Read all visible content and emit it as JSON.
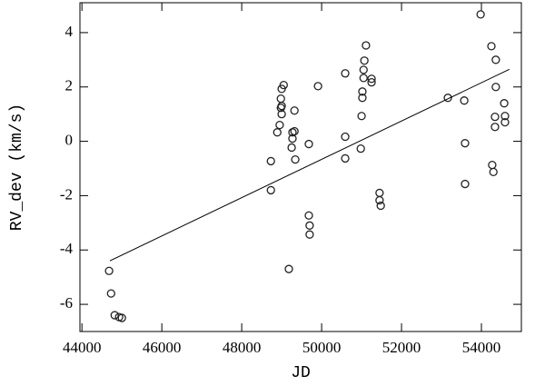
{
  "chart_data": {
    "type": "scatter",
    "x_label": "JD",
    "y_label": "RV_dev  (km/s)",
    "xlim": [
      43950,
      55000
    ],
    "ylim": [
      -7,
      5.1
    ],
    "xticks": [
      44000,
      46000,
      48000,
      50000,
      52000,
      54000
    ],
    "yticks": [
      -6,
      -4,
      -2,
      0,
      2,
      4
    ],
    "series": [
      {
        "color": "#222222",
        "x": [
          44680,
          44730,
          44820,
          44930,
          45000,
          48730,
          48730,
          48890,
          48950,
          48980,
          48980,
          49000,
          49000,
          49050,
          49000,
          49180,
          49250,
          49270,
          49270,
          49320,
          49320,
          49340,
          49680,
          49680,
          49700,
          49700,
          49910,
          50590,
          50590,
          50590,
          50980,
          51000,
          51020,
          51020,
          51050,
          51050,
          51070,
          51110,
          51250,
          51250,
          51450,
          51450,
          51480,
          53160,
          53570,
          53590,
          53590,
          53980,
          54250,
          54270,
          54300,
          54340,
          54340,
          54360,
          54360,
          54570,
          54590,
          54590
        ],
        "values": [
          -4.77,
          -5.6,
          -6.4,
          -6.47,
          -6.5,
          -0.73,
          -1.8,
          0.33,
          0.6,
          1.57,
          1.23,
          1.0,
          1.93,
          2.07,
          1.3,
          -4.7,
          -0.23,
          0.33,
          0.1,
          1.13,
          0.37,
          -0.67,
          -0.1,
          -2.73,
          -3.1,
          -3.43,
          2.03,
          2.5,
          0.17,
          -0.63,
          -0.27,
          0.93,
          1.83,
          1.6,
          2.63,
          2.33,
          2.97,
          3.53,
          2.3,
          2.17,
          -1.9,
          -2.17,
          -2.37,
          1.6,
          1.5,
          -0.07,
          -1.57,
          4.67,
          3.5,
          -0.87,
          -1.13,
          0.9,
          0.53,
          3.0,
          2.0,
          1.4,
          0.93,
          0.7
        ]
      }
    ],
    "fit": {
      "color": "#000000",
      "x": [
        44700,
        54700
      ],
      "values": [
        -4.4,
        2.65
      ]
    }
  }
}
